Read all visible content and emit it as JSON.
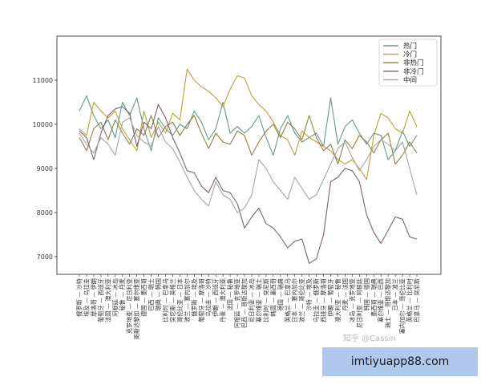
{
  "chart_data": {
    "type": "line",
    "title": "",
    "xlabel": "",
    "ylabel": "",
    "ylim": [
      6600,
      12000
    ],
    "yticks": [
      7000,
      8000,
      9000,
      10000,
      11000
    ],
    "grid": false,
    "legend_position": "top-right",
    "categories": [
      "俄罗斯 — 沙特",
      "埃及 — 乌拉圭",
      "摩洛哥 — 伊朗",
      "葡萄牙 — 西班牙",
      "法国 — 澳大利亚",
      "阿根廷 — 冰岛",
      "秘鲁 — 丹麦",
      "克罗地亚 — 尼日利亚",
      "哥斯达黎加 — 塞尔维亚",
      "德国 — 墨西哥",
      "巴西 — 瑞士",
      "瑞典 — 韩国",
      "比利时 — 巴拿马",
      "突尼斯 — 英格兰",
      "哥伦比亚 — 日本",
      "波兰 — 塞内加尔",
      "俄罗斯 — 埃及",
      "葡萄牙 — 摩洛哥",
      "乌拉圭 — 沙特",
      "伊朗 — 西班牙",
      "丹麦 — 澳大利亚",
      "法国 — 秘鲁",
      "阿根廷 — 克罗地亚",
      "巴西 — 哥斯达黎加",
      "尼日利亚 — 冰岛",
      "塞尔维亚 — 瑞士",
      "比利时 — 突尼斯",
      "韩国 — 墨西哥",
      "德国 — 瑞典",
      "英格兰 — 巴拿马",
      "日本 — 塞内加尔",
      "波兰 — 哥伦比亚",
      "沙特 — 埃及",
      "乌拉圭 — 俄罗斯",
      "西班牙 — 摩洛哥",
      "伊朗 — 葡萄牙",
      "澳大利亚 — 秘鲁",
      "丹麦 — 法国",
      "冰岛 — 克罗地亚",
      "尼日利亚 — 阿根廷",
      "韩国 — 德国",
      "墨西哥 — 瑞典",
      "塞尔维亚 — 巴西",
      "瑞士 — 哥斯达黎加",
      "日本 — 波兰",
      "塞内加尔 — 哥伦比亚",
      "英格兰 — 比利时",
      "巴拿马 — 突尼斯"
    ],
    "series": [
      {
        "name": "热门",
        "color": "#6b9488",
        "values": [
          10300,
          10650,
          10200,
          9900,
          10100,
          9700,
          10500,
          10200,
          10600,
          9900,
          9400,
          10150,
          9900,
          9750,
          10000,
          9900,
          10300,
          10050,
          9650,
          9900,
          10500,
          9800,
          9950,
          9800,
          9950,
          10200,
          9700,
          9300,
          9900,
          10200,
          9800,
          9600,
          9700,
          9800,
          9500,
          10600,
          9550,
          9950,
          10100,
          9800,
          9550,
          9800,
          9750,
          9200,
          9400,
          9850,
          9500,
          9750
        ]
      },
      {
        "name": "冷门",
        "color": "#b7a23a",
        "values": [
          9900,
          9750,
          10500,
          10300,
          10150,
          10300,
          9900,
          9650,
          9400,
          10300,
          9700,
          10050,
          9800,
          10250,
          10100,
          11250,
          11000,
          10850,
          10750,
          10600,
          10400,
          10800,
          11100,
          11050,
          10650,
          10450,
          10300,
          10050,
          9750,
          9650,
          9300,
          9850,
          9700,
          9600,
          9500,
          9400,
          9200,
          9100,
          9200,
          9000,
          8750,
          9750,
          10250,
          10150,
          9900,
          9800,
          10300,
          9950
        ]
      },
      {
        "name": "非热门",
        "color": "#8e7e4a",
        "values": [
          9700,
          9400,
          9900,
          10050,
          9650,
          10100,
          9800,
          9550,
          9900,
          9750,
          10200,
          9700,
          9950,
          10050,
          9750,
          10000,
          10200,
          9800,
          9450,
          9800,
          9600,
          9550,
          9850,
          9750,
          9300,
          9600,
          9850,
          10000,
          9700,
          10050,
          9900,
          9650,
          10200,
          9700,
          9400,
          9550,
          9100,
          9650,
          9450,
          9750,
          9600,
          9350,
          9650,
          9800,
          9100,
          9300,
          9600,
          9350
        ]
      },
      {
        "name": "非冷门",
        "color": "#7c5f74",
        "values": [
          9850,
          9700,
          9200,
          9800,
          10200,
          10350,
          10400,
          10250,
          9500,
          10050,
          9900,
          10450,
          10150,
          9700,
          9350,
          8950,
          8900,
          8600,
          8450,
          8800,
          8500,
          8450,
          8200,
          7650,
          7900,
          8100,
          7750,
          7650,
          7450,
          7200,
          7350,
          7400,
          6850,
          6950,
          7500,
          8700,
          8800,
          9000,
          8950,
          8700,
          7950,
          7550,
          7300,
          7600,
          7900,
          7850,
          7450,
          7400
        ]
      },
      {
        "name": "中间",
        "color": "#a4a4a4",
        "values": [
          9800,
          9550,
          9350,
          9700,
          9550,
          9300,
          10050,
          10150,
          9750,
          9600,
          9500,
          9950,
          9600,
          9450,
          9150,
          8800,
          8500,
          8300,
          8150,
          8700,
          8400,
          8300,
          8000,
          8100,
          8400,
          9200,
          9000,
          8700,
          8500,
          8300,
          8800,
          8550,
          8300,
          8400,
          8750,
          9100,
          9450,
          9600,
          9250,
          8950,
          9200,
          9500,
          9650,
          9550,
          9400,
          9600,
          9000,
          8400
        ]
      }
    ]
  },
  "watermark": "知乎 @Cassin",
  "banner_text": "imtiyuapp88.com"
}
